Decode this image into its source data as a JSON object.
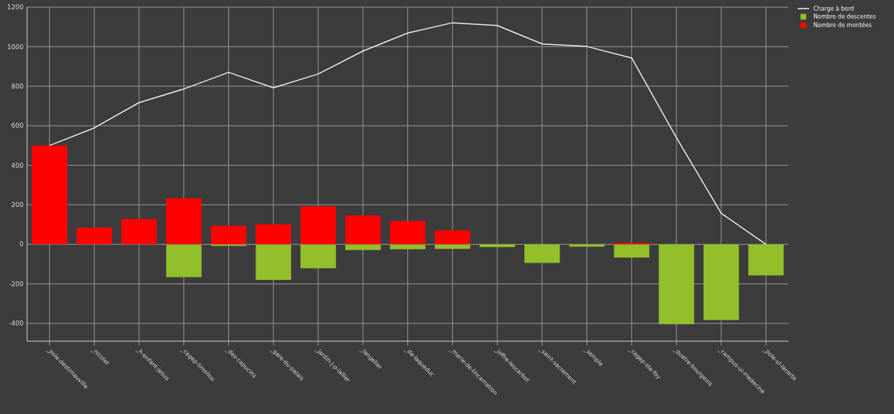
{
  "chart_data": {
    "type": "bar",
    "grid": true,
    "legend": "top right",
    "categories": [
      "_pole-destimauville",
      "_nicolet",
      "_h-enfant-jesus",
      "_cegep-limoilou",
      "_des-capucins",
      "_gare-du-palais",
      "_jardin-j-p-lallier",
      "_langelier",
      "_de-laqueduc",
      "_marie-de-lincarnation",
      "_joffre-lescarbot",
      "_saint-sacrement",
      "_semple",
      "_cegep-ste-foy",
      "_quatre-bourgeois",
      "_campus-ul-medecine",
      "_pole-ul-lacerte"
    ],
    "ylim": [
      -490,
      1200
    ],
    "yticks": [
      -400,
      -200,
      0,
      200,
      400,
      600,
      800,
      1000,
      1200
    ],
    "series": [
      {
        "name": "Charge à bord",
        "type": "line",
        "color": "#f0f0f0",
        "values": [
          500,
          589,
          717,
          786,
          870,
          792,
          862,
          978,
          1069,
          1121,
          1107,
          1014,
          1001,
          943,
          540,
          157,
          0
        ]
      },
      {
        "name": "Nombre de descentes",
        "color": "#92bf2a",
        "values": [
          0,
          0,
          0,
          -166,
          -8,
          -180,
          -121,
          -29,
          -25,
          -23,
          -14,
          -94,
          -12,
          -67,
          -404,
          -383,
          -157
        ]
      },
      {
        "name": "Nombre de montées",
        "color": "#ff0000",
        "values": [
          500,
          84,
          128,
          233,
          94,
          101,
          192,
          146,
          118,
          71,
          0,
          0,
          0,
          7,
          0,
          0,
          0
        ]
      }
    ]
  }
}
